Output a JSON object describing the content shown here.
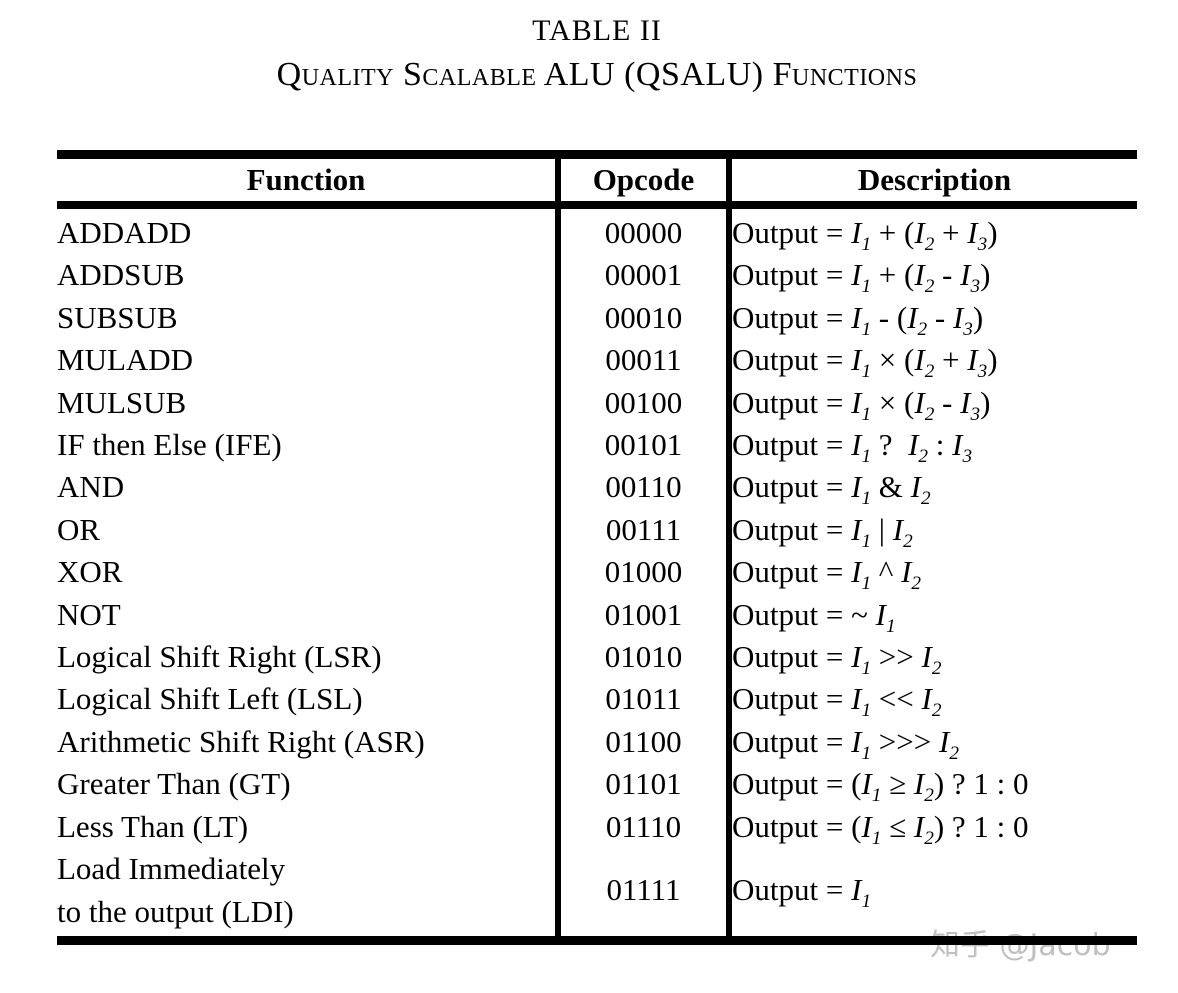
{
  "caption": {
    "number": "TABLE II",
    "title": "Quality Scalable ALU (QSALU) Functions"
  },
  "table": {
    "headers": [
      "Function",
      "Opcode",
      "Description"
    ],
    "rows": [
      {
        "function": "ADDADD",
        "opcode": "00000",
        "description": "Output = I_1 + (I_2 + I_3)"
      },
      {
        "function": "ADDSUB",
        "opcode": "00001",
        "description": "Output = I_1 + (I_2 - I_3)"
      },
      {
        "function": "SUBSUB",
        "opcode": "00010",
        "description": "Output = I_1 - (I_2 - I_3)"
      },
      {
        "function": "MULADD",
        "opcode": "00011",
        "description": "Output = I_1 × (I_2 + I_3)"
      },
      {
        "function": "MULSUB",
        "opcode": "00100",
        "description": "Output = I_1 × (I_2 - I_3)"
      },
      {
        "function": "IF then Else (IFE)",
        "opcode": "00101",
        "description": "Output = I_1 ?  I_2 : I_3"
      },
      {
        "function": "AND",
        "opcode": "00110",
        "description": "Output = I_1 & I_2"
      },
      {
        "function": "OR",
        "opcode": "00111",
        "description": "Output = I_1 | I_2"
      },
      {
        "function": "XOR",
        "opcode": "01000",
        "description": "Output = I_1 ^ I_2"
      },
      {
        "function": "NOT",
        "opcode": "01001",
        "description": "Output = ~ I_1"
      },
      {
        "function": "Logical Shift Right (LSR)",
        "opcode": "01010",
        "description": "Output = I_1 >> I_2"
      },
      {
        "function": "Logical Shift Left (LSL)",
        "opcode": "01011",
        "description": "Output = I_1 << I_2"
      },
      {
        "function": "Arithmetic Shift Right (ASR)",
        "opcode": "01100",
        "description": "Output = I_1 >>> I_2"
      },
      {
        "function": "Greater Than (GT)",
        "opcode": "01101",
        "description": "Output = (I_1 ≥ I_2) ? 1 : 0"
      },
      {
        "function": "Less Than (LT)",
        "opcode": "01110",
        "description": "Output = (I_1 ≤ I_2) ? 1 : 0"
      },
      {
        "function": "Load Immediately\nto the output (LDI)",
        "opcode": "01111",
        "description": "Output = I_1"
      }
    ]
  },
  "watermark": {
    "text": "知乎 @Jacob"
  },
  "colors": {
    "text": "#000000",
    "rule": "#000000",
    "watermark": "#c0c0c0",
    "background": "#ffffff"
  }
}
